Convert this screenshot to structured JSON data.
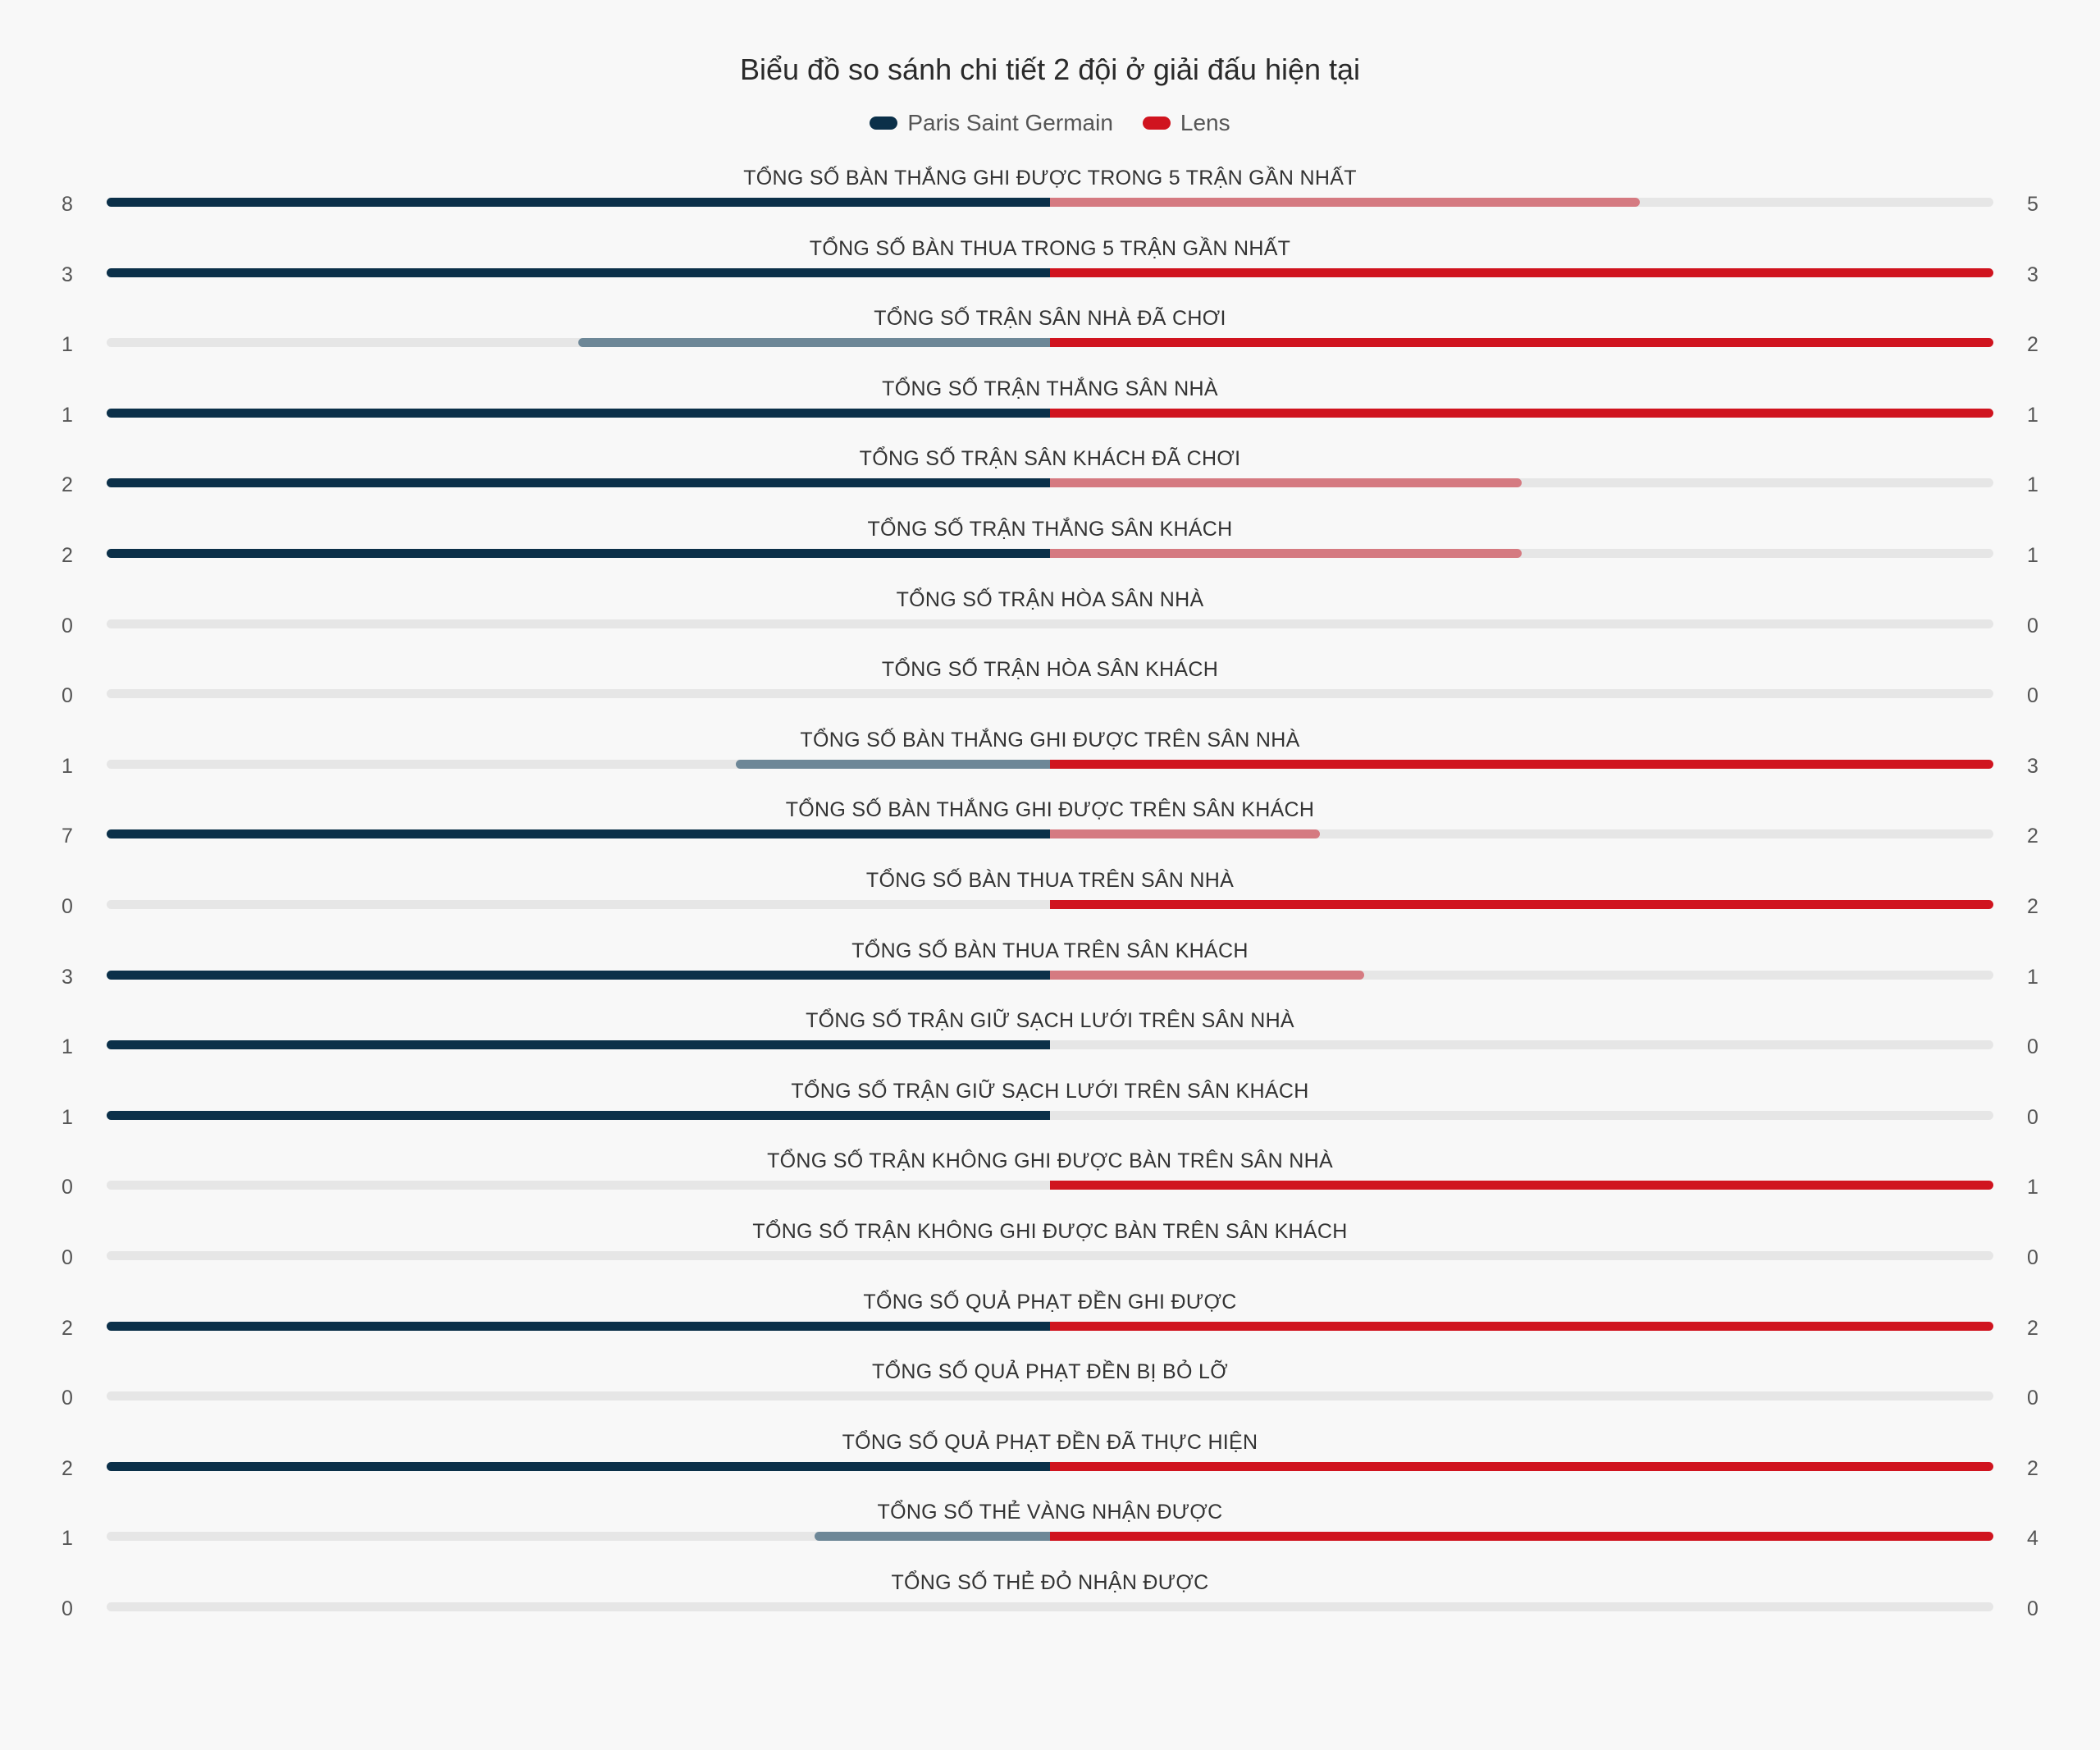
{
  "chart_data": {
    "type": "bar",
    "title": "Biểu đồ so sánh chi tiết 2 đội ở giải đấu hiện tại",
    "legend_position": "top-center",
    "teams": [
      {
        "name": "Paris Saint Germain",
        "color": "#0b3049",
        "light_color": "#6d8797"
      },
      {
        "name": "Lens",
        "color": "#d0141f",
        "light_color": "#d57a81"
      }
    ],
    "track_color": "#e6e6e6",
    "categories": [
      "TỔNG SỐ BÀN THẮNG GHI ĐƯỢC TRONG 5 TRẬN GẦN NHẤT",
      "TỔNG SỐ BÀN THUA TRONG 5 TRẬN GẦN NHẤT",
      "TỔNG SỐ TRẬN SÂN NHÀ ĐÃ CHƠI",
      "TỔNG SỐ TRẬN THẮNG SÂN NHÀ",
      "TỔNG SỐ TRẬN SÂN KHÁCH ĐÃ CHƠI",
      "TỔNG SỐ TRẬN THẮNG SÂN KHÁCH",
      "TỔNG SỐ TRẬN HÒA SÂN NHÀ",
      "TỔNG SỐ TRẬN HÒA SÂN KHÁCH",
      "TỔNG SỐ BÀN THẮNG GHI ĐƯỢC TRÊN SÂN NHÀ",
      "TỔNG SỐ BÀN THẮNG GHI ĐƯỢC TRÊN SÂN KHÁCH",
      "TỔNG SỐ BÀN THUA TRÊN SÂN NHÀ",
      "TỔNG SỐ BÀN THUA TRÊN SÂN KHÁCH",
      "TỔNG SỐ TRẬN GIỮ SẠCH LƯỚI TRÊN SÂN NHÀ",
      "TỔNG SỐ TRẬN GIỮ SẠCH LƯỚI TRÊN SÂN KHÁCH",
      "TỔNG SỐ TRẬN KHÔNG GHI ĐƯỢC BÀN TRÊN SÂN NHÀ",
      "TỔNG SỐ TRẬN KHÔNG GHI ĐƯỢC BÀN TRÊN SÂN KHÁCH",
      "TỔNG SỐ QUẢ PHẠT ĐỀN GHI ĐƯỢC",
      "TỔNG SỐ QUẢ PHẠT ĐỀN BỊ BỎ LỠ",
      "TỔNG SỐ QUẢ PHẠT ĐỀN ĐÃ THỰC HIỆN",
      "TỔNG SỐ THẺ VÀNG NHẬN ĐƯỢC",
      "TỔNG SỐ THẺ ĐỎ NHẬN ĐƯỢC"
    ],
    "series": [
      {
        "name": "Paris Saint Germain",
        "values": [
          8,
          3,
          1,
          1,
          2,
          2,
          0,
          0,
          1,
          7,
          0,
          3,
          1,
          1,
          0,
          0,
          2,
          0,
          2,
          1,
          0
        ]
      },
      {
        "name": "Lens",
        "values": [
          5,
          3,
          2,
          1,
          1,
          1,
          0,
          0,
          3,
          2,
          2,
          1,
          0,
          0,
          1,
          0,
          2,
          0,
          2,
          4,
          0
        ]
      }
    ]
  }
}
